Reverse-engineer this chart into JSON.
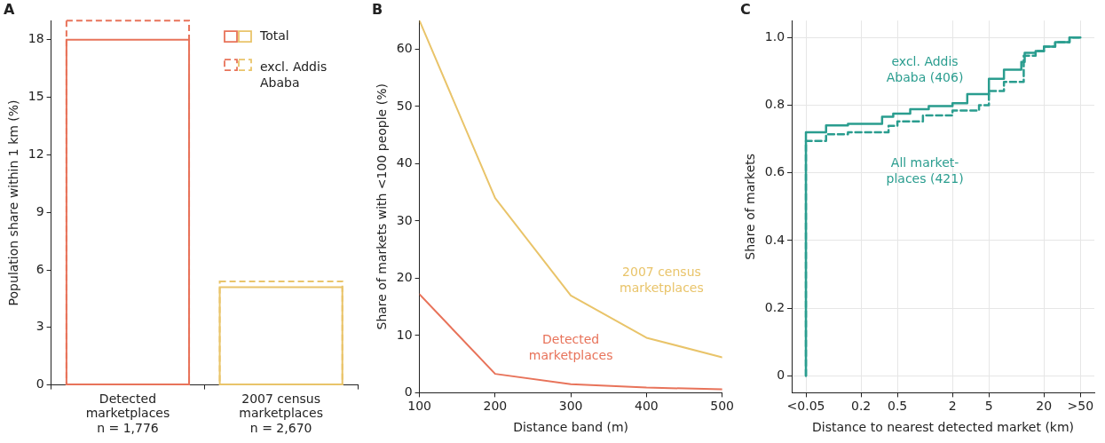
{
  "chart_data": [
    {
      "type": "bar",
      "title": "A",
      "ylabel": "Population share within 1 km (%)",
      "categories": [
        "Detected\nmarketplaces\nn = 1,776",
        "2007 census\nmarketplaces\nn = 2,670"
      ],
      "ylim": [
        0,
        19
      ],
      "yticks": [
        0,
        3,
        6,
        9,
        12,
        15,
        18
      ],
      "legend": "top right",
      "series": [
        {
          "name": "Total",
          "colors": [
            "#e8735a",
            "#e9c46a"
          ],
          "line_style": "solid",
          "values": [
            18.0,
            5.1
          ]
        },
        {
          "name": "excl. Addis Ababa",
          "colors": [
            "#e8735a",
            "#e9c46a"
          ],
          "line_style": "dashed",
          "values": [
            19.0,
            5.4
          ]
        }
      ]
    },
    {
      "type": "line",
      "title": "B",
      "xlabel": "Distance band (m)",
      "ylabel": "Share of markets with <100 people (%)",
      "x": [
        100,
        200,
        300,
        400,
        500
      ],
      "xlim": [
        100,
        500
      ],
      "xticks": [
        100,
        200,
        300,
        400,
        500
      ],
      "ylim": [
        0,
        65
      ],
      "yticks": [
        0,
        10,
        20,
        30,
        40,
        50,
        60
      ],
      "series": [
        {
          "name": "Detected marketplaces",
          "color": "#e8735a",
          "values": [
            17.2,
            3.3,
            1.5,
            0.9,
            0.6
          ]
        },
        {
          "name": "2007 census marketplaces",
          "color": "#e9c46a",
          "values": [
            65,
            34,
            17,
            9.6,
            6.2
          ]
        }
      ]
    },
    {
      "type": "step",
      "title": "C",
      "xlabel": "Distance to nearest detected market (km)",
      "ylabel": "Share of markets",
      "log": "x",
      "grid": true,
      "xlim": [
        0.035,
        71
      ],
      "xticks": [
        {
          "value": 0.05,
          "label": "<0.05"
        },
        0.2,
        0.5,
        2,
        5,
        20,
        {
          "value": 50,
          "label": ">50"
        }
      ],
      "ylim": [
        -0.05,
        1.05
      ],
      "yticks": [
        0,
        0.2,
        0.4,
        0.6,
        0.8,
        {
          "value": 1,
          "label": "1.0"
        }
      ],
      "series": [
        {
          "name": "excl. Addis Ababa (406)",
          "color": "#2a9d8f",
          "line_style": "solid",
          "x": [
            0.05,
            0.05,
            0.083,
            0.144,
            0.34,
            0.45,
            0.69,
            1.1,
            2,
            2.9,
            5,
            7.3,
            11.3,
            12.3,
            16.2,
            20,
            26.5,
            38,
            50
          ],
          "values": [
            0,
            0.716,
            0.72,
            0.74,
            0.745,
            0.766,
            0.775,
            0.788,
            0.797,
            0.806,
            0.833,
            0.878,
            0.905,
            0.928,
            0.955,
            0.96,
            0.973,
            0.986,
            1.0
          ]
        },
        {
          "name": "All market-places (421)",
          "color": "#2a9d8f",
          "line_style": "dashed",
          "x": [
            0.05,
            0.05,
            0.083,
            0.144,
            0.4,
            0.5,
            0.95,
            2,
            3.9,
            5,
            7.3,
            12,
            16.2,
            20,
            26.5,
            38,
            50
          ],
          "values": [
            0,
            0.689,
            0.694,
            0.714,
            0.72,
            0.739,
            0.752,
            0.77,
            0.784,
            0.8,
            0.842,
            0.869,
            0.946,
            0.96,
            0.973,
            0.986,
            1.0
          ]
        }
      ]
    }
  ]
}
